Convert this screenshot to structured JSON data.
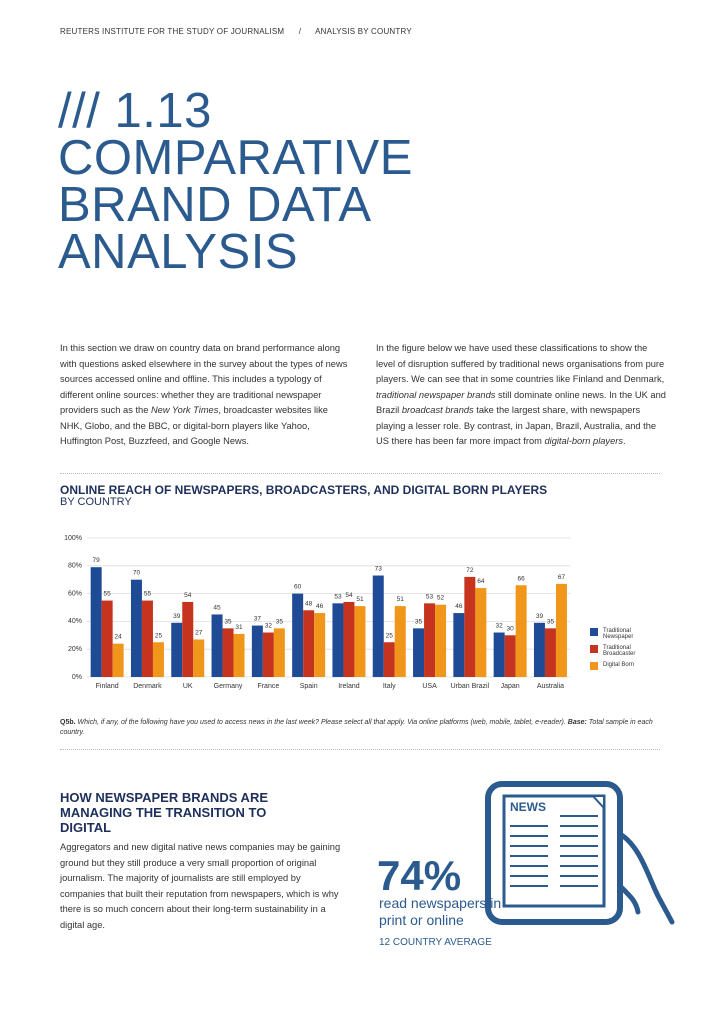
{
  "header": {
    "org": "REUTERS INSTITUTE FOR THE STUDY OF JOURNALISM",
    "separator": "/",
    "section": "ANALYSIS BY COUNTRY"
  },
  "title": {
    "number": "/// 1.13",
    "lines": [
      "COMPARATIVE",
      "BRAND DATA",
      "ANALYSIS"
    ]
  },
  "intro": [
    [
      "In this section we draw on country data on brand performance along with questions asked elsewhere in the survey about the types of news sources accessed online and offline. This includes a typology of different online sources: whether they are traditional newspaper providers such as the ",
      {
        "text": "New York Times",
        "italic": true
      },
      ", broadcaster websites like NHK, Globo, and the BBC, or digital-born players like Yahoo, Huffington Post, Buzzfeed, and Google News."
    ],
    [
      "In the figure below we have used these classifications to show the level of disruption suffered by traditional news organisations from pure players. We can see that in some countries like Finland and Denmark, ",
      {
        "text": "traditional newspaper brands",
        "italic": true
      },
      " still dominate online news. In the UK and Brazil ",
      {
        "text": "broadcast brands",
        "italic": true
      },
      " take the largest share, with newspapers playing a lesser role. By contrast, in Japan, Brazil, Australia, and the US there has been far more impact from ",
      {
        "text": "digital-born players",
        "italic": true
      },
      "."
    ]
  ],
  "chart_data": {
    "type": "bar",
    "title": "ONLINE REACH OF NEWSPAPERS, BROADCASTERS, AND DIGITAL BORN PLAYERS",
    "subtitle": "BY COUNTRY",
    "categories": [
      "Finland",
      "Denmark",
      "UK",
      "Germany",
      "France",
      "Spain",
      "Ireland",
      "Italy",
      "USA",
      "Urban Brazil",
      "Japan",
      "Australia"
    ],
    "series": [
      {
        "name": "Traditional Newspaper",
        "color": "#1f4a96",
        "values": [
          79,
          70,
          39,
          45,
          37,
          60,
          53,
          73,
          35,
          46,
          32,
          39
        ]
      },
      {
        "name": "Traditional Broadcaster",
        "color": "#c6331f",
        "values": [
          55,
          55,
          54,
          35,
          32,
          48,
          54,
          25,
          53,
          72,
          30,
          35
        ]
      },
      {
        "name": "Digital Born",
        "color": "#f0961a",
        "values": [
          24,
          25,
          27,
          31,
          35,
          46,
          51,
          51,
          52,
          64,
          66,
          67
        ]
      }
    ],
    "ylim": [
      0,
      100
    ],
    "yticks": [
      {
        "value": 0,
        "label": "0%"
      },
      {
        "value": 20,
        "label": "20%"
      },
      {
        "value": 40,
        "label": "40%"
      },
      {
        "value": 60,
        "label": "60%"
      },
      {
        "value": 80,
        "label": "80%"
      },
      {
        "value": 100,
        "label": "100%"
      }
    ],
    "grid": true
  },
  "footnote": {
    "label": "Q5b.",
    "text": " Which, if any, of the following have you used to access news in the last week? Please select all that apply. Via online platforms (web, mobile, tablet, e-reader). ",
    "base_label": "Base:",
    "base_text": " Total sample in each country."
  },
  "section": {
    "heading": "HOW NEWSPAPER BRANDS ARE MANAGING THE TRANSITION TO DIGITAL",
    "body": "Aggregators and new digital native news companies may be gaining ground but they still produce a very small proportion of original journalism. The majority of journalists are still employed by companies that built their reputation from newspapers, which is why there is so much concern about their long-term sustainability in a digital age."
  },
  "infographic": {
    "tablet_label": "NEWS",
    "stat": "74%",
    "caption": "read newspapers in print or online",
    "note": "12 COUNTRY AVERAGE"
  }
}
